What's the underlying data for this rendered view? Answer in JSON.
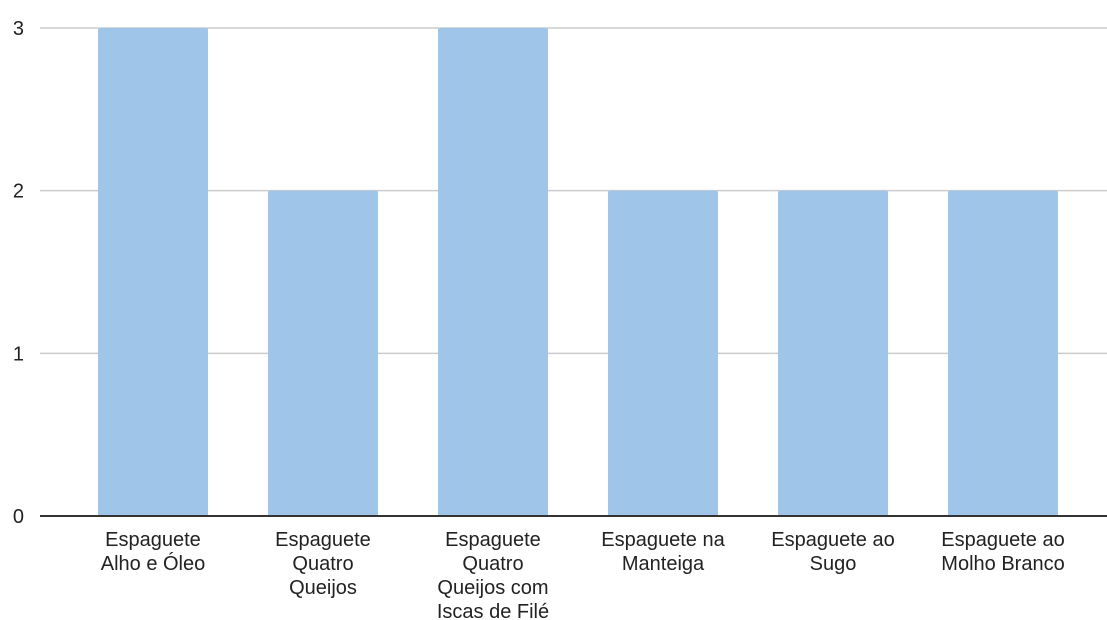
{
  "chart_data": {
    "type": "bar",
    "title": "",
    "xlabel": "",
    "ylabel": "",
    "categories": [
      "Espaguete Alho e Óleo",
      "Espaguete Quatro Queijos",
      "Espaguete Quatro Queijos com Iscas de Filé",
      "Espaguete na Manteiga",
      "Espaguete ao Sugo",
      "Espaguete ao Molho Branco"
    ],
    "category_label_lines": [
      [
        "Espaguete",
        "Alho e Óleo"
      ],
      [
        "Espaguete",
        "Quatro",
        "Queijos"
      ],
      [
        "Espaguete",
        "Quatro",
        "Queijos com",
        "Iscas de Filé"
      ],
      [
        "Espaguete na",
        "Manteiga"
      ],
      [
        "Espaguete ao",
        "Sugo"
      ],
      [
        "Espaguete ao",
        "Molho Branco"
      ]
    ],
    "values": [
      3,
      2,
      3,
      2,
      2,
      2
    ],
    "ylim": [
      0,
      3
    ],
    "yticks": [
      0,
      1,
      2,
      3
    ],
    "grid": true,
    "legend": "none",
    "bar_color": "#9fc5e8",
    "grid_color": "#cccccc",
    "axis_color": "#333333"
  }
}
